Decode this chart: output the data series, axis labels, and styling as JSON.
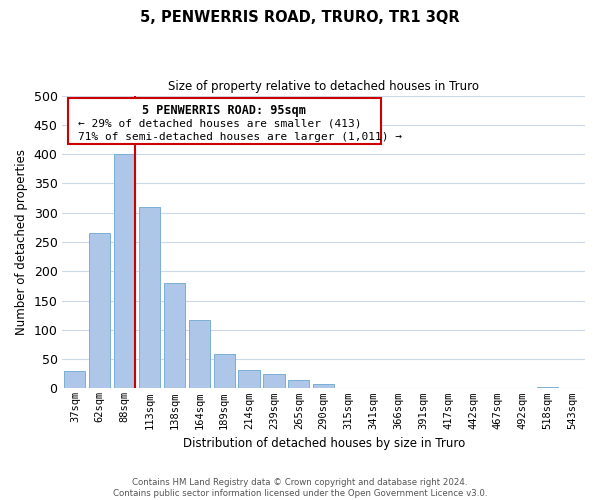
{
  "title": "5, PENWERRIS ROAD, TRURO, TR1 3QR",
  "subtitle": "Size of property relative to detached houses in Truro",
  "xlabel": "Distribution of detached houses by size in Truro",
  "ylabel": "Number of detached properties",
  "bar_labels": [
    "37sqm",
    "62sqm",
    "88sqm",
    "113sqm",
    "138sqm",
    "164sqm",
    "189sqm",
    "214sqm",
    "239sqm",
    "265sqm",
    "290sqm",
    "315sqm",
    "341sqm",
    "366sqm",
    "391sqm",
    "417sqm",
    "442sqm",
    "467sqm",
    "492sqm",
    "518sqm",
    "543sqm"
  ],
  "bar_values": [
    30,
    265,
    400,
    310,
    180,
    117,
    58,
    32,
    25,
    15,
    7,
    0,
    0,
    0,
    0,
    0,
    0,
    0,
    0,
    2,
    0
  ],
  "bar_color": "#aec6e8",
  "bar_edge_color": "#7aafd4",
  "property_line_label": "5 PENWERRIS ROAD: 95sqm",
  "annotation_smaller": "← 29% of detached houses are smaller (413)",
  "annotation_larger": "71% of semi-detached houses are larger (1,011) →",
  "vline_color": "#cc0000",
  "ylim": [
    0,
    500
  ],
  "yticks": [
    0,
    50,
    100,
    150,
    200,
    250,
    300,
    350,
    400,
    450,
    500
  ],
  "box_edge_color": "#cc0000",
  "box_face_color": "#ffffff",
  "footer_line1": "Contains HM Land Registry data © Crown copyright and database right 2024.",
  "footer_line2": "Contains public sector information licensed under the Open Government Licence v3.0.",
  "background_color": "#ffffff",
  "grid_color": "#ccd9e8"
}
